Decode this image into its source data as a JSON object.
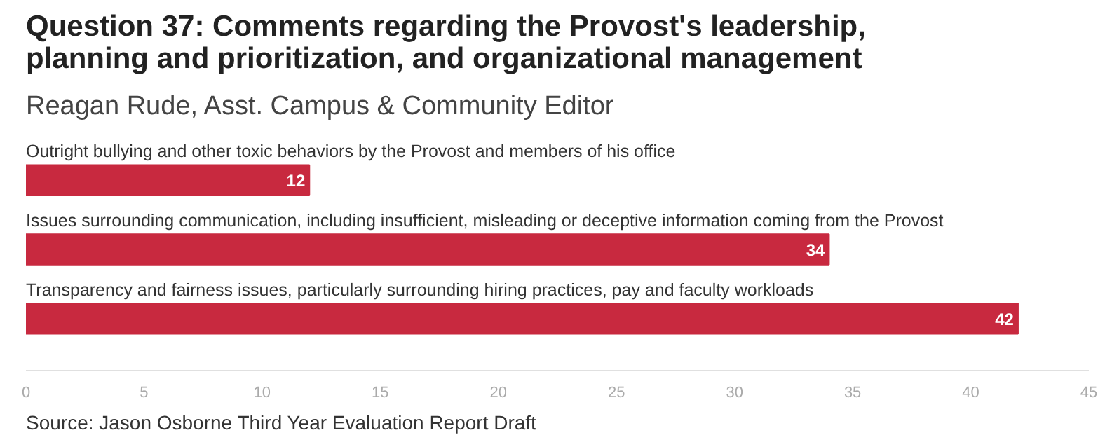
{
  "chart_data": {
    "type": "bar",
    "orientation": "horizontal",
    "title": "Question 37: Comments regarding the Provost's leadership,\nplanning and prioritization, and organizational management",
    "subtitle": "Reagan Rude, Asst. Campus & Community Editor",
    "categories": [
      "Outright bullying and other toxic behaviors by the Provost and members of his office",
      "Issues surrounding communication, including insufficient, misleading or deceptive information coming from the Provost",
      "Transparency and fairness issues, particularly surrounding hiring practices, pay and faculty workloads"
    ],
    "values": [
      12,
      34,
      42
    ],
    "color": "#c8293f",
    "data_labels": true,
    "xlim": [
      0,
      45
    ],
    "xticks": [
      0,
      5,
      10,
      15,
      20,
      25,
      30,
      35,
      40,
      45
    ],
    "grid": false,
    "annotations": [
      "Source: Jason Osborne Third Year Evaluation Report Draft"
    ]
  }
}
